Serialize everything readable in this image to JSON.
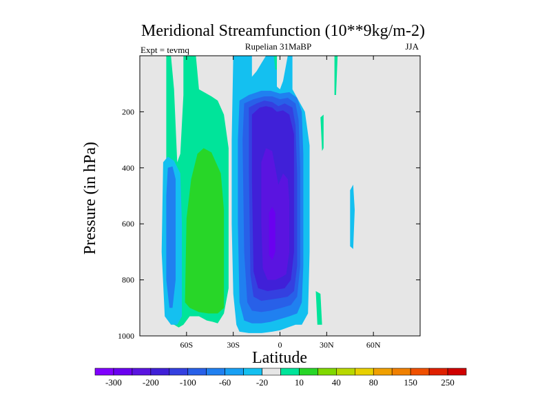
{
  "chart_data": {
    "type": "heatmap",
    "title": "Meridional Streamfunction (10**9kg/m-2)",
    "left_string": "Expt = tevmq",
    "center_string": "Rupelian  31MaBP",
    "right_string": "JJA",
    "xlabel": "Latitude",
    "ylabel": "Pressure (in hPa)",
    "xlim": [
      -90,
      90
    ],
    "ylim": [
      1000,
      0
    ],
    "x_ticks": [
      {
        "value": -60,
        "label": "60S"
      },
      {
        "value": -30,
        "label": "30S"
      },
      {
        "value": 0,
        "label": "0"
      },
      {
        "value": 30,
        "label": "30N"
      },
      {
        "value": 60,
        "label": "60N"
      }
    ],
    "y_ticks": [
      {
        "value": 200,
        "label": "200"
      },
      {
        "value": 400,
        "label": "400"
      },
      {
        "value": 600,
        "label": "600"
      },
      {
        "value": 800,
        "label": "800"
      },
      {
        "value": 1000,
        "label": "1000"
      }
    ],
    "background_color": "#e6e6e6",
    "colorbar": {
      "colors": [
        "#8000ff",
        "#6a00f0",
        "#5a14e0",
        "#4020d8",
        "#3440e0",
        "#2860e8",
        "#2080f0",
        "#18a0f4",
        "#14c0f0",
        "#e6e6e6",
        "#00e49a",
        "#28d628",
        "#80d800",
        "#b8d800",
        "#e8d000",
        "#f0a000",
        "#f08000",
        "#f05000",
        "#e02000",
        "#d00000"
      ],
      "labels": [
        "-300",
        "-200",
        "-100",
        "-60",
        "-20",
        "10",
        "40",
        "80",
        "150",
        "250"
      ]
    },
    "contour_regions": [
      {
        "name": "sh-cell-outer-teal",
        "level": 10,
        "color": "#00e49a",
        "points": [
          [
            -76,
            0
          ],
          [
            -73,
            0
          ],
          [
            -73,
            650
          ],
          [
            -72,
            940
          ],
          [
            -68,
            960
          ],
          [
            -65,
            970
          ],
          [
            -62,
            960
          ],
          [
            -58,
            930
          ],
          [
            -52,
            930
          ],
          [
            -47,
            945
          ],
          [
            -43,
            950
          ],
          [
            -40,
            955
          ],
          [
            -36,
            920
          ],
          [
            -33,
            830
          ],
          [
            -33,
            330
          ],
          [
            -36,
            210
          ],
          [
            -40,
            160
          ],
          [
            -44,
            145
          ],
          [
            -52,
            120
          ],
          [
            -54,
            0
          ],
          [
            -62,
            0
          ],
          [
            -62,
            140
          ],
          [
            -64,
            350
          ],
          [
            -66,
            380
          ],
          [
            -68,
            120
          ],
          [
            -70,
            0
          ]
        ]
      },
      {
        "name": "sh-cell-inner-green",
        "level": 40,
        "color": "#28d628",
        "points": [
          [
            -60,
            580
          ],
          [
            -57,
            440
          ],
          [
            -53,
            350
          ],
          [
            -49,
            330
          ],
          [
            -44,
            345
          ],
          [
            -38,
            420
          ],
          [
            -36,
            550
          ],
          [
            -36,
            900
          ],
          [
            -40,
            920
          ],
          [
            -46,
            920
          ],
          [
            -52,
            915
          ],
          [
            -58,
            900
          ],
          [
            -61,
            880
          ]
        ]
      },
      {
        "name": "southern-blue-band",
        "level": -20,
        "color": "#14c0f0",
        "points": [
          [
            -75,
            380
          ],
          [
            -72,
            360
          ],
          [
            -68,
            375
          ],
          [
            -64,
            420
          ],
          [
            -63,
            600
          ],
          [
            -63,
            930
          ],
          [
            -66,
            960
          ],
          [
            -70,
            960
          ],
          [
            -74,
            930
          ],
          [
            -76,
            700
          ]
        ]
      },
      {
        "name": "southern-blue-band-inner",
        "level": -60,
        "color": "#2080f0",
        "points": [
          [
            -72,
            400
          ],
          [
            -69,
            395
          ],
          [
            -67,
            440
          ],
          [
            -67,
            800
          ],
          [
            -69,
            900
          ],
          [
            -71,
            900
          ],
          [
            -73,
            800
          ],
          [
            -73,
            500
          ]
        ]
      },
      {
        "name": "main-cell-l1",
        "level": -20,
        "color": "#14c0f0",
        "points": [
          [
            -30,
            0
          ],
          [
            -18,
            0
          ],
          [
            -18,
            75
          ],
          [
            -15,
            55
          ],
          [
            -9,
            0
          ],
          [
            -2,
            0
          ],
          [
            -2,
            110
          ],
          [
            0,
            120
          ],
          [
            2,
            90
          ],
          [
            5,
            0
          ],
          [
            8,
            0
          ],
          [
            8,
            120
          ],
          [
            12,
            160
          ],
          [
            16,
            200
          ],
          [
            19,
            320
          ],
          [
            19,
            700
          ],
          [
            18,
            920
          ],
          [
            14,
            960
          ],
          [
            10,
            960
          ],
          [
            5,
            970
          ],
          [
            0,
            980
          ],
          [
            -5,
            985
          ],
          [
            -12,
            990
          ],
          [
            -20,
            990
          ],
          [
            -26,
            985
          ],
          [
            -28,
            960
          ],
          [
            -30,
            850
          ],
          [
            -31,
            600
          ],
          [
            -31,
            300
          ]
        ]
      },
      {
        "name": "main-cell-l2",
        "level": -60,
        "color": "#2080f0",
        "points": [
          [
            -26,
            160
          ],
          [
            -20,
            140
          ],
          [
            -12,
            125
          ],
          [
            -6,
            125
          ],
          [
            0,
            135
          ],
          [
            6,
            130
          ],
          [
            11,
            150
          ],
          [
            14,
            200
          ],
          [
            15,
            350
          ],
          [
            15,
            750
          ],
          [
            14,
            880
          ],
          [
            11,
            920
          ],
          [
            6,
            930
          ],
          [
            0,
            940
          ],
          [
            -6,
            950
          ],
          [
            -12,
            955
          ],
          [
            -18,
            955
          ],
          [
            -23,
            945
          ],
          [
            -26,
            880
          ],
          [
            -27,
            600
          ],
          [
            -27,
            300
          ]
        ]
      },
      {
        "name": "main-cell-l3",
        "level": -100,
        "color": "#2860e8",
        "points": [
          [
            -23,
            170
          ],
          [
            -17,
            155
          ],
          [
            -10,
            145
          ],
          [
            -5,
            145
          ],
          [
            0,
            155
          ],
          [
            5,
            150
          ],
          [
            10,
            170
          ],
          [
            12,
            230
          ],
          [
            13,
            400
          ],
          [
            13,
            750
          ],
          [
            11,
            860
          ],
          [
            7,
            890
          ],
          [
            1,
            900
          ],
          [
            -6,
            910
          ],
          [
            -12,
            915
          ],
          [
            -18,
            910
          ],
          [
            -21,
            880
          ],
          [
            -23,
            700
          ],
          [
            -24,
            300
          ]
        ]
      },
      {
        "name": "main-cell-l4",
        "level": -150,
        "color": "#3440e0",
        "points": [
          [
            -20,
            185
          ],
          [
            -15,
            170
          ],
          [
            -10,
            160
          ],
          [
            -5,
            165
          ],
          [
            -1,
            180
          ],
          [
            3,
            170
          ],
          [
            8,
            185
          ],
          [
            10,
            250
          ],
          [
            11,
            420
          ],
          [
            11,
            750
          ],
          [
            9,
            840
          ],
          [
            5,
            860
          ],
          [
            0,
            865
          ],
          [
            -6,
            870
          ],
          [
            -12,
            875
          ],
          [
            -17,
            860
          ],
          [
            -19,
            780
          ],
          [
            -20,
            400
          ]
        ]
      },
      {
        "name": "main-cell-l5",
        "level": -200,
        "color": "#4020d8",
        "points": [
          [
            -18,
            210
          ],
          [
            -13,
            185
          ],
          [
            -9,
            180
          ],
          [
            -5,
            185
          ],
          [
            -2,
            200
          ],
          [
            2,
            195
          ],
          [
            6,
            210
          ],
          [
            9,
            280
          ],
          [
            9,
            700
          ],
          [
            7,
            800
          ],
          [
            3,
            830
          ],
          [
            -2,
            835
          ],
          [
            -8,
            840
          ],
          [
            -14,
            830
          ],
          [
            -17,
            770
          ],
          [
            -18,
            450
          ]
        ]
      },
      {
        "name": "main-cell-l6",
        "level": -250,
        "color": "#5a14e0",
        "points": [
          [
            -12,
            380
          ],
          [
            -9,
            330
          ],
          [
            -5,
            340
          ],
          [
            -3,
            400
          ],
          [
            -1,
            460
          ],
          [
            2,
            420
          ],
          [
            5,
            440
          ],
          [
            6,
            520
          ],
          [
            6,
            700
          ],
          [
            4,
            780
          ],
          [
            1,
            790
          ],
          [
            -3,
            800
          ],
          [
            -8,
            800
          ],
          [
            -11,
            760
          ],
          [
            -12,
            600
          ]
        ]
      },
      {
        "name": "main-cell-core",
        "level": -300,
        "color": "#6a00f0",
        "points": [
          [
            -7,
            560
          ],
          [
            -5,
            540
          ],
          [
            -3,
            560
          ],
          [
            -3,
            700
          ],
          [
            -5,
            730
          ],
          [
            -7,
            710
          ]
        ]
      },
      {
        "name": "tropical-teal-top",
        "level": 10,
        "color": "#00e49a",
        "points": [
          [
            -4,
            0
          ],
          [
            -2,
            0
          ],
          [
            -2,
            50
          ],
          [
            -3,
            50
          ]
        ]
      },
      {
        "name": "nh-teal-strip",
        "level": 10,
        "color": "#00e49a",
        "points": [
          [
            35,
            0
          ],
          [
            37,
            0
          ],
          [
            36,
            140
          ],
          [
            35,
            140
          ]
        ]
      },
      {
        "name": "nh-teal-upper",
        "level": 10,
        "color": "#00e49a",
        "points": [
          [
            26,
            220
          ],
          [
            28,
            210
          ],
          [
            28,
            330
          ],
          [
            27,
            340
          ]
        ]
      },
      {
        "name": "nh-teal-lower",
        "level": 10,
        "color": "#00e49a",
        "points": [
          [
            23,
            840
          ],
          [
            26,
            850
          ],
          [
            27,
            960
          ],
          [
            24,
            960
          ]
        ]
      },
      {
        "name": "nh-blue-sliver",
        "level": -20,
        "color": "#14c0f0",
        "points": [
          [
            45,
            480
          ],
          [
            47,
            460
          ],
          [
            48,
            550
          ],
          [
            47,
            690
          ],
          [
            45,
            680
          ]
        ]
      }
    ]
  }
}
